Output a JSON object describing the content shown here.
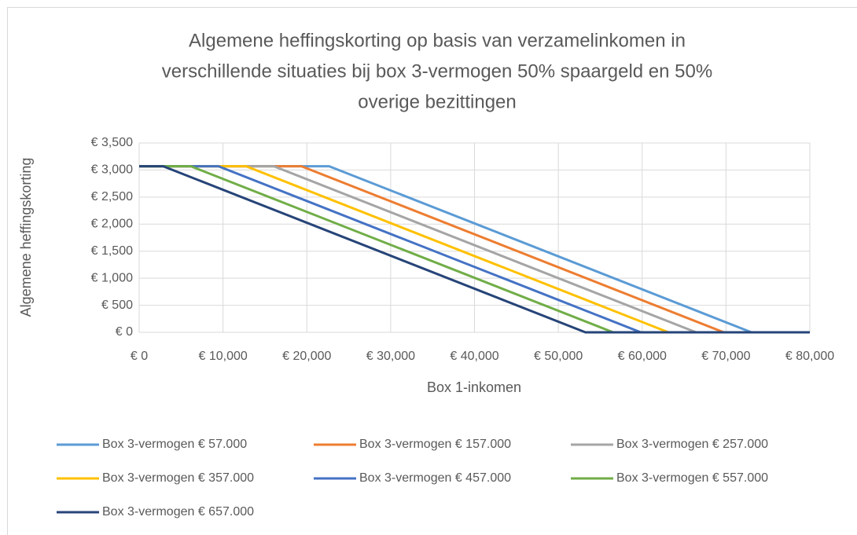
{
  "chart_data": {
    "type": "line",
    "title": [
      "Algemene heffingskorting op basis van verzamelinkomen in",
      "verschillende situaties bij box 3-vermogen 50% spaargeld en 50%",
      "overige bezittingen"
    ],
    "x_label": "Box 1-inkomen",
    "y_label": "Algemene heffingskorting",
    "xlim": [
      0,
      80000
    ],
    "ylim": [
      0,
      3500
    ],
    "xticks": [
      {
        "value": 0,
        "label": "€ 0"
      },
      {
        "value": 10000,
        "label": "€ 10,000"
      },
      {
        "value": 20000,
        "label": "€ 20,000"
      },
      {
        "value": 30000,
        "label": "€ 30,000"
      },
      {
        "value": 40000,
        "label": "€ 40,000"
      },
      {
        "value": 50000,
        "label": "€ 50,000"
      },
      {
        "value": 60000,
        "label": "€ 60,000"
      },
      {
        "value": 70000,
        "label": "€ 70,000"
      },
      {
        "value": 80000,
        "label": "€ 80,000"
      }
    ],
    "yticks": [
      {
        "value": 0,
        "label": "€ 0"
      },
      {
        "value": 500,
        "label": "€ 500"
      },
      {
        "value": 1000,
        "label": "€ 1,000"
      },
      {
        "value": 1500,
        "label": "€ 1,500"
      },
      {
        "value": 2000,
        "label": "€ 2,000"
      },
      {
        "value": 2500,
        "label": "€ 2,500"
      },
      {
        "value": 3000,
        "label": "€ 3,000"
      },
      {
        "value": 3500,
        "label": "€ 3,500"
      }
    ],
    "grid": true,
    "legend": "bottom",
    "series": [
      {
        "name": "Box 3-vermogen € 57.000",
        "color": "#5b9bd5",
        "x": [
          0,
          22660,
          73031,
          80000
        ],
        "values": [
          3070,
          3070,
          0,
          0
        ]
      },
      {
        "name": "Box 3-vermogen € 157.000",
        "color": "#ed7d31",
        "x": [
          0,
          19360,
          69731,
          80000
        ],
        "values": [
          3070,
          3070,
          0,
          0
        ]
      },
      {
        "name": "Box 3-vermogen € 257.000",
        "color": "#a5a5a5",
        "x": [
          0,
          16060,
          66431,
          80000
        ],
        "values": [
          3070,
          3070,
          0,
          0
        ]
      },
      {
        "name": "Box 3-vermogen € 357.000",
        "color": "#ffc000",
        "x": [
          0,
          12760,
          63131,
          80000
        ],
        "values": [
          3070,
          3070,
          0,
          0
        ]
      },
      {
        "name": "Box 3-vermogen € 457.000",
        "color": "#4472c4",
        "x": [
          0,
          9460,
          59831,
          80000
        ],
        "values": [
          3070,
          3070,
          0,
          0
        ]
      },
      {
        "name": "Box 3-vermogen € 557.000",
        "color": "#70ad47",
        "x": [
          0,
          6160,
          56531,
          80000
        ],
        "values": [
          3070,
          3070,
          0,
          0
        ]
      },
      {
        "name": "Box 3-vermogen € 657.000",
        "color": "#264478",
        "x": [
          0,
          2860,
          53231,
          80000
        ],
        "values": [
          3070,
          3070,
          0,
          0
        ]
      }
    ]
  }
}
